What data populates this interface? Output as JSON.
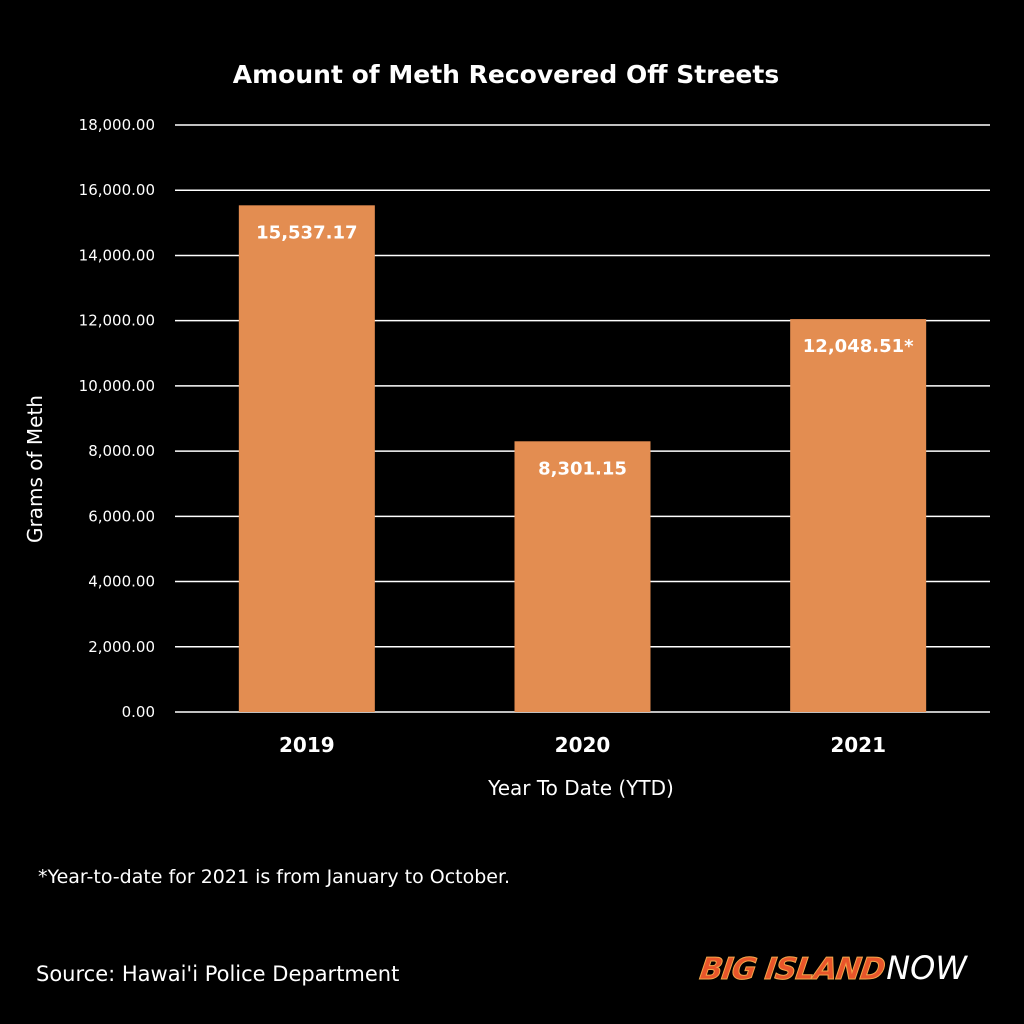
{
  "colors": {
    "background": "#000000",
    "bar": "#e38d51",
    "gridline": "#ffffff",
    "text": "#ffffff",
    "logo_big_island": "#e8552a",
    "logo_now": "#ffffff"
  },
  "chart_data": {
    "type": "bar",
    "title": "Amount of Meth Recovered Off Streets",
    "xlabel": "Year To Date (YTD)",
    "ylabel": "Grams of Meth",
    "categories": [
      "2019",
      "2020",
      "2021"
    ],
    "values": [
      15537.17,
      8301.15,
      12048.51
    ],
    "data_labels": [
      "15,537.17",
      "8,301.15",
      "12,048.51*"
    ],
    "ylim": [
      0,
      18000
    ],
    "y_ticks": [
      0,
      2000,
      4000,
      6000,
      8000,
      10000,
      12000,
      14000,
      16000,
      18000
    ],
    "y_tick_labels": [
      "0.00",
      "2,000.00",
      "4,000.00",
      "6,000.00",
      "8,000.00",
      "10,000.00",
      "12,000.00",
      "14,000.00",
      "16,000.00",
      "18,000.00"
    ],
    "grid": true,
    "legend": "none"
  },
  "footnote": "*Year-to-date for 2021 is from January to October.",
  "source": "Source: Hawai'i Police Department",
  "logo": {
    "big_island": "BIG ISLAND",
    "now": "NOW"
  }
}
